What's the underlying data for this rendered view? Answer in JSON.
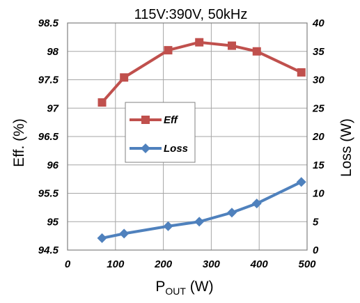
{
  "chart_data": {
    "type": "line",
    "title": "115V:390V, 50kHz",
    "xlabel": {
      "main": "P",
      "sub": "OUT",
      "unit": " (W)"
    },
    "ylabel_left": "Eff. (%)",
    "ylabel_right": "Loss (W)",
    "xlim": [
      0,
      500
    ],
    "ylim_left": [
      94.5,
      98.5
    ],
    "ylim_right": [
      0,
      40
    ],
    "x_ticks": [
      "0",
      "100",
      "200",
      "300",
      "400",
      "500"
    ],
    "y_left_ticks": [
      "94.5",
      "95",
      "95.5",
      "96",
      "96.5",
      "97",
      "97.5",
      "98",
      "98.5"
    ],
    "y_right_ticks": [
      "0",
      "5",
      "10",
      "15",
      "20",
      "25",
      "30",
      "35",
      "40"
    ],
    "grid": true,
    "legend_position": "center-left",
    "series": [
      {
        "name": "Eff",
        "axis": "left",
        "marker": "square",
        "color": "#C0504D",
        "x": [
          72,
          118,
          210,
          275,
          343,
          395,
          488
        ],
        "y": [
          97.1,
          97.54,
          98.02,
          98.16,
          98.1,
          98.0,
          97.63
        ]
      },
      {
        "name": "Loss",
        "axis": "right",
        "marker": "diamond",
        "color": "#4F81BD",
        "x": [
          72,
          118,
          210,
          275,
          343,
          395,
          488
        ],
        "y": [
          2.1,
          2.9,
          4.2,
          5.0,
          6.6,
          8.2,
          12.0
        ]
      }
    ]
  }
}
